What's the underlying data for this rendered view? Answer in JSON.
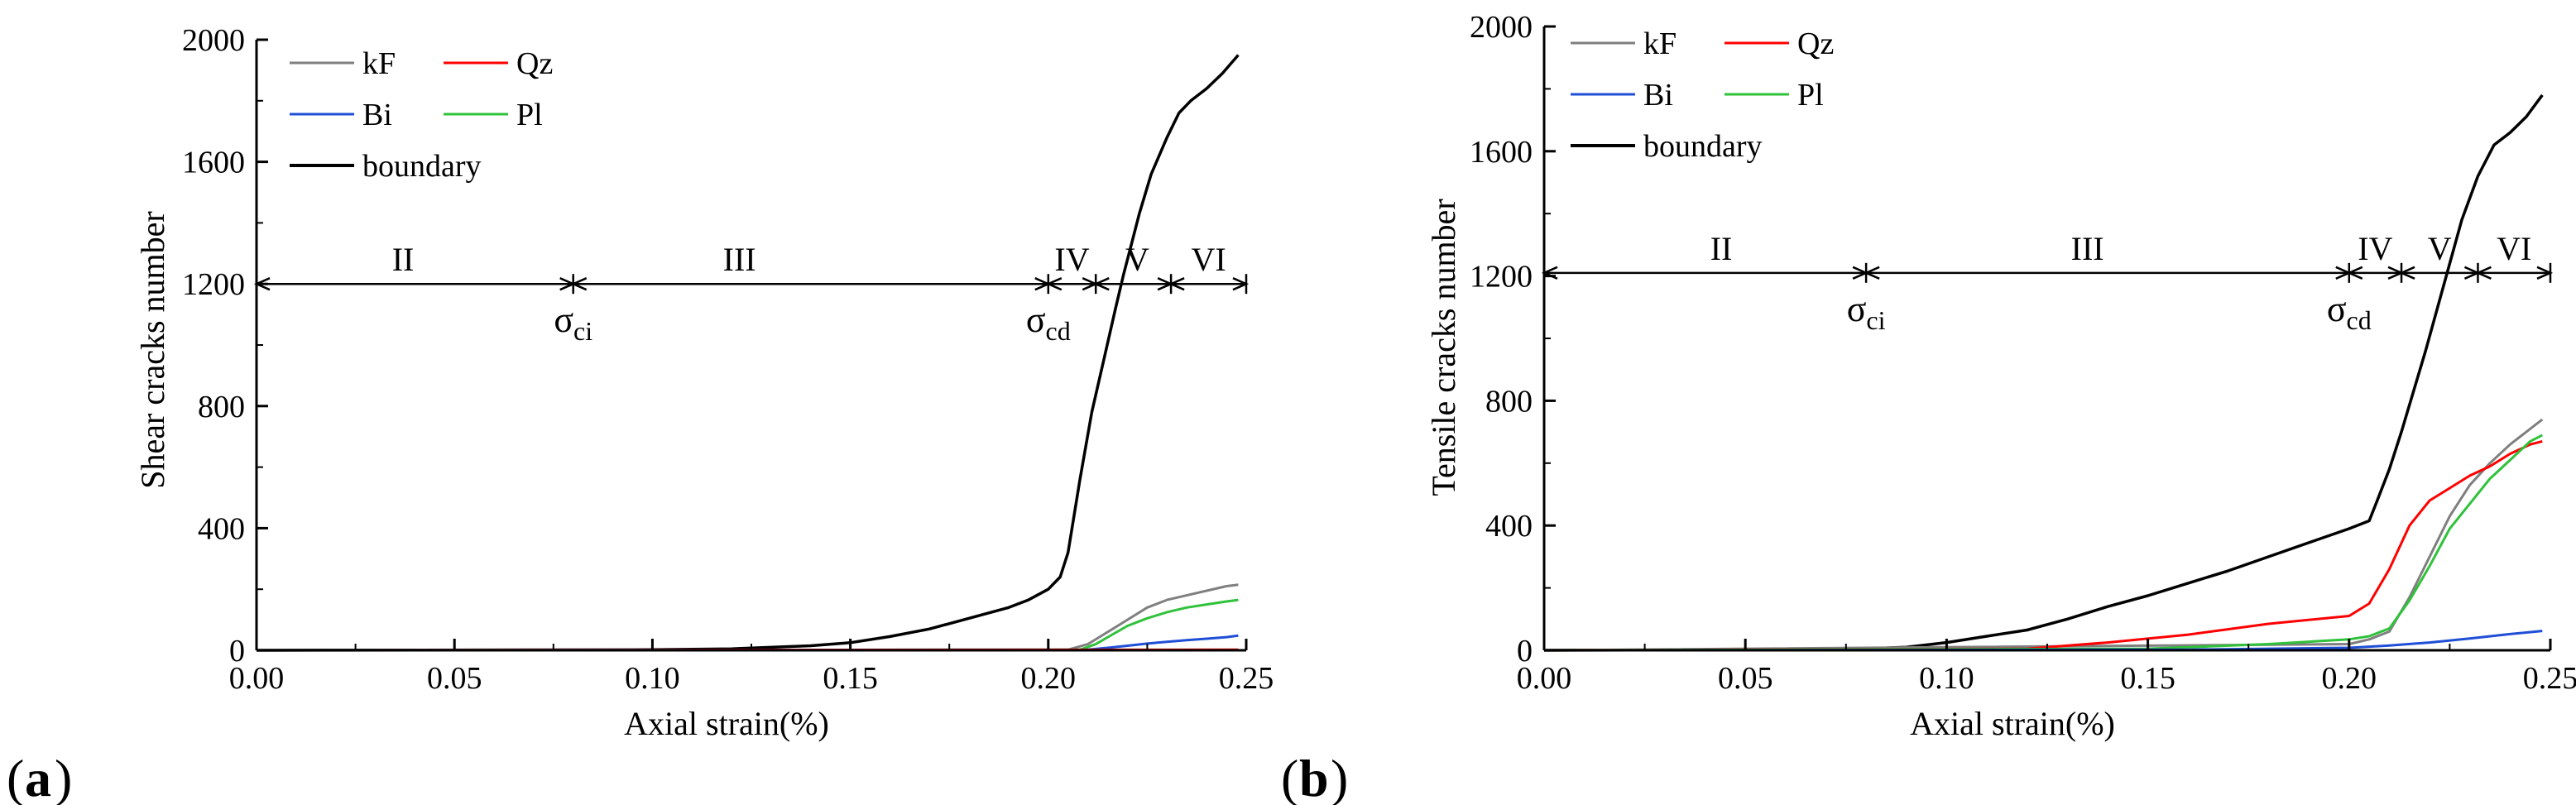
{
  "colors": {
    "kF": "#7f7f7f",
    "Qz": "#ff0000",
    "Bi": "#1f4fd6",
    "Pl": "#2fc23a",
    "boundary": "#000000",
    "axis": "#000000"
  },
  "chart_data": [
    {
      "type": "line",
      "panel_label": "a",
      "xlabel": "Axial strain(%)",
      "ylabel": "Shear cracks number",
      "xlim": [
        0,
        0.25
      ],
      "ylim": [
        0,
        2000
      ],
      "x_ticks": [
        0,
        0.05,
        0.1,
        0.15,
        0.2,
        0.25
      ],
      "x_tick_labels": [
        "0.00",
        "0.05",
        "0.10",
        "0.15",
        "0.20",
        "0.25"
      ],
      "y_ticks": [
        0,
        400,
        800,
        1200,
        1600,
        2000
      ],
      "y_tick_labels": [
        "0",
        "400",
        "800",
        "1200",
        "1600",
        "2000"
      ],
      "legend": {
        "position": "top-left",
        "entries": [
          {
            "label": "kF",
            "color_key": "kF"
          },
          {
            "label": "Qz",
            "color_key": "Qz"
          },
          {
            "label": "Bi",
            "color_key": "Bi"
          },
          {
            "label": "Pl",
            "color_key": "Pl"
          },
          {
            "label": "boundary",
            "color_key": "boundary"
          }
        ]
      },
      "stage_line_y": 1200,
      "stage_boundaries": [
        0,
        0.08,
        0.2,
        0.212,
        0.231,
        0.25
      ],
      "stages": [
        {
          "label": "II",
          "x": 0.037
        },
        {
          "label": "III",
          "x": 0.122
        },
        {
          "label": "IV",
          "x": 0.206
        },
        {
          "label": "V",
          "x": 0.2225
        },
        {
          "label": "VI",
          "x": 0.2405
        }
      ],
      "thresholds": [
        {
          "symbol": "σ",
          "sub": "ci",
          "x": 0.08
        },
        {
          "symbol": "σ",
          "sub": "cd",
          "x": 0.2
        }
      ],
      "series": [
        {
          "name": "boundary",
          "color_key": "boundary",
          "x": [
            0,
            0.1,
            0.12,
            0.14,
            0.15,
            0.16,
            0.17,
            0.18,
            0.19,
            0.195,
            0.2,
            0.203,
            0.205,
            0.208,
            0.211,
            0.214,
            0.217,
            0.219,
            0.221,
            0.223,
            0.226,
            0.23,
            0.233,
            0.236,
            0.24,
            0.244,
            0.248
          ],
          "y": [
            0,
            2,
            5,
            15,
            25,
            45,
            70,
            105,
            140,
            165,
            200,
            240,
            320,
            560,
            780,
            950,
            1120,
            1230,
            1330,
            1430,
            1560,
            1680,
            1760,
            1800,
            1840,
            1890,
            1950
          ]
        },
        {
          "name": "kF",
          "color_key": "kF",
          "x": [
            0,
            0.205,
            0.21,
            0.215,
            0.22,
            0.225,
            0.23,
            0.235,
            0.24,
            0.245,
            0.248
          ],
          "y": [
            0,
            2,
            20,
            60,
            100,
            140,
            165,
            180,
            195,
            210,
            215
          ]
        },
        {
          "name": "Pl",
          "color_key": "Pl",
          "x": [
            0,
            0.208,
            0.212,
            0.216,
            0.22,
            0.225,
            0.23,
            0.235,
            0.24,
            0.245,
            0.248
          ],
          "y": [
            0,
            2,
            20,
            50,
            80,
            105,
            125,
            140,
            150,
            160,
            165
          ]
        },
        {
          "name": "Bi",
          "color_key": "Bi",
          "x": [
            0,
            0.21,
            0.215,
            0.22,
            0.225,
            0.23,
            0.235,
            0.24,
            0.245,
            0.248
          ],
          "y": [
            0,
            2,
            8,
            15,
            22,
            28,
            33,
            38,
            43,
            48
          ]
        },
        {
          "name": "Qz",
          "color_key": "Qz",
          "x": [
            0,
            0.248
          ],
          "y": [
            0,
            2
          ]
        }
      ]
    },
    {
      "type": "line",
      "panel_label": "b",
      "xlabel": "Axial strain(%)",
      "ylabel": "Tensile cracks number",
      "xlim": [
        0,
        0.25
      ],
      "ylim": [
        0,
        2000
      ],
      "x_ticks": [
        0,
        0.05,
        0.1,
        0.15,
        0.2,
        0.25
      ],
      "x_tick_labels": [
        "0.00",
        "0.05",
        "0.10",
        "0.15",
        "0.20",
        "0.25"
      ],
      "y_ticks": [
        0,
        400,
        800,
        1200,
        1600,
        2000
      ],
      "y_tick_labels": [
        "0",
        "400",
        "800",
        "1200",
        "1600",
        "2000"
      ],
      "legend": {
        "position": "top-left",
        "entries": [
          {
            "label": "kF",
            "color_key": "kF"
          },
          {
            "label": "Qz",
            "color_key": "Qz"
          },
          {
            "label": "Bi",
            "color_key": "Bi"
          },
          {
            "label": "Pl",
            "color_key": "Pl"
          },
          {
            "label": "boundary",
            "color_key": "boundary"
          }
        ]
      },
      "stage_line_y": 1210,
      "stage_boundaries": [
        0,
        0.08,
        0.2,
        0.213,
        0.232,
        0.25
      ],
      "stages": [
        {
          "label": "II",
          "x": 0.044
        },
        {
          "label": "III",
          "x": 0.135
        },
        {
          "label": "IV",
          "x": 0.2065
        },
        {
          "label": "V",
          "x": 0.2225
        },
        {
          "label": "VI",
          "x": 0.241
        }
      ],
      "thresholds": [
        {
          "symbol": "σ",
          "sub": "ci",
          "x": 0.08
        },
        {
          "symbol": "σ",
          "sub": "cd",
          "x": 0.2
        }
      ],
      "series": [
        {
          "name": "boundary",
          "color_key": "boundary",
          "x": [
            0,
            0.075,
            0.09,
            0.1,
            0.11,
            0.12,
            0.13,
            0.14,
            0.15,
            0.16,
            0.17,
            0.18,
            0.19,
            0.2,
            0.205,
            0.207,
            0.21,
            0.213,
            0.216,
            0.219,
            0.222,
            0.225,
            0.228,
            0.232,
            0.236,
            0.24,
            0.244,
            0.248
          ],
          "y": [
            0,
            2,
            10,
            25,
            45,
            65,
            100,
            140,
            175,
            215,
            255,
            300,
            345,
            390,
            415,
            480,
            580,
            700,
            830,
            960,
            1100,
            1240,
            1380,
            1520,
            1620,
            1660,
            1710,
            1780
          ]
        },
        {
          "name": "kF",
          "color_key": "kF",
          "x": [
            0,
            0.2,
            0.205,
            0.21,
            0.215,
            0.22,
            0.225,
            0.23,
            0.235,
            0.24,
            0.245,
            0.248
          ],
          "y": [
            0,
            20,
            35,
            60,
            170,
            300,
            430,
            530,
            600,
            660,
            710,
            740
          ]
        },
        {
          "name": "Qz",
          "color_key": "Qz",
          "x": [
            0,
            0.12,
            0.14,
            0.16,
            0.18,
            0.2,
            0.205,
            0.21,
            0.215,
            0.22,
            0.225,
            0.23,
            0.235,
            0.24,
            0.245,
            0.248
          ],
          "y": [
            0,
            5,
            25,
            50,
            85,
            110,
            150,
            260,
            400,
            480,
            520,
            560,
            590,
            630,
            660,
            670
          ]
        },
        {
          "name": "Pl",
          "color_key": "Pl",
          "x": [
            0,
            0.15,
            0.18,
            0.2,
            0.205,
            0.21,
            0.215,
            0.22,
            0.225,
            0.23,
            0.235,
            0.24,
            0.245,
            0.248
          ],
          "y": [
            0,
            5,
            20,
            35,
            45,
            70,
            160,
            270,
            390,
            470,
            550,
            610,
            670,
            690
          ]
        },
        {
          "name": "Bi",
          "color_key": "Bi",
          "x": [
            0,
            0.16,
            0.2,
            0.21,
            0.22,
            0.23,
            0.24,
            0.248
          ],
          "y": [
            0,
            2,
            8,
            15,
            25,
            38,
            52,
            62
          ]
        }
      ]
    }
  ]
}
